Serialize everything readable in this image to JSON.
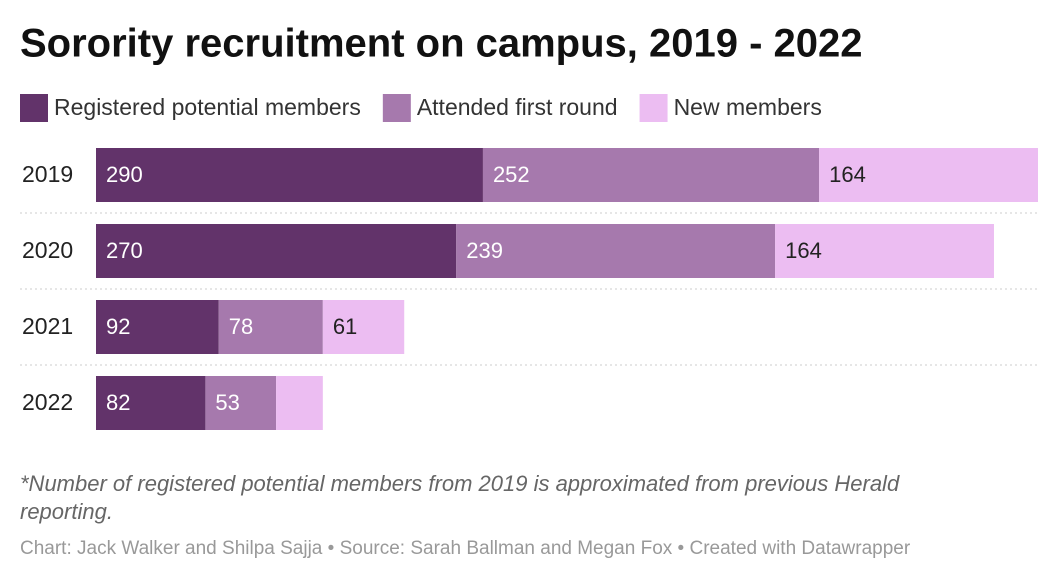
{
  "chart_data": {
    "type": "stacked-bar-horizontal",
    "title": "Sorority recruitment on campus, 2019 - 2022",
    "categories": [
      "2019",
      "2020",
      "2021",
      "2022"
    ],
    "series": [
      {
        "name": "Registered potential members",
        "color": "#62336a",
        "values": [
          290,
          270,
          92,
          82
        ]
      },
      {
        "name": "Attended first round",
        "color": "#a679ad",
        "values": [
          252,
          239,
          78,
          53
        ]
      },
      {
        "name": "New members",
        "color": "#ecbdf2",
        "values": [
          164,
          164,
          61,
          35
        ]
      }
    ],
    "notes": [
      "*Number of registered potential members from 2019 is approximated from previous Herald",
      "reporting."
    ],
    "credit": "Chart: Jack Walker and Shilpa Sajja • Source: Sarah Ballman and Megan Fox • Created with Datawrapper"
  }
}
